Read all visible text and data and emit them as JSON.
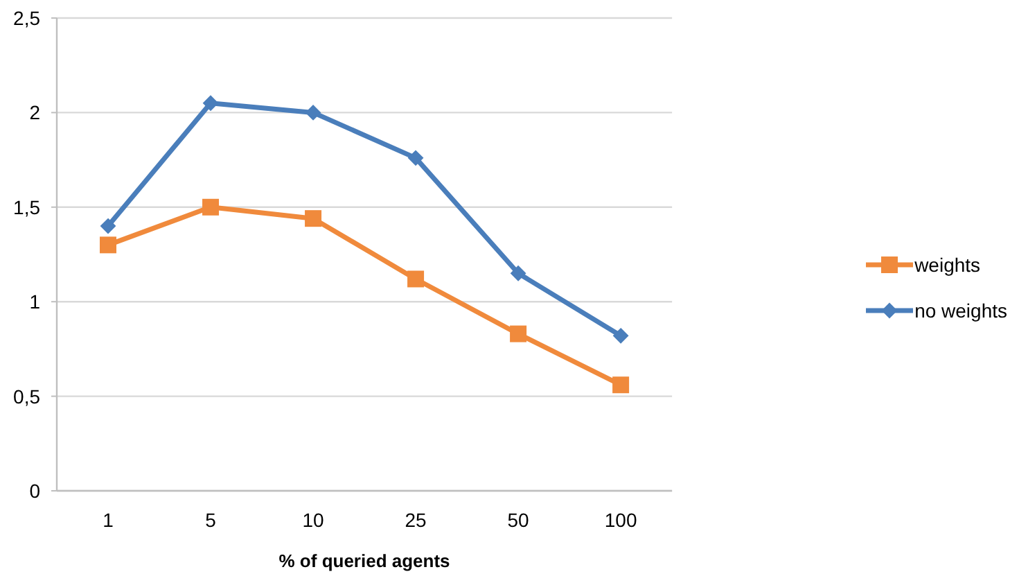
{
  "chart_data": {
    "type": "line",
    "xlabel": "% of queried agents",
    "categories": [
      "1",
      "5",
      "10",
      "25",
      "50",
      "100"
    ],
    "series": [
      {
        "name": "weights",
        "color": "#f08a3c",
        "marker": "square",
        "values": [
          1.3,
          1.5,
          1.44,
          1.12,
          0.83,
          0.56
        ]
      },
      {
        "name": "no weights",
        "color": "#4a7ebb",
        "marker": "diamond",
        "values": [
          1.4,
          2.05,
          2.0,
          1.76,
          1.15,
          0.82
        ]
      }
    ],
    "ylim": [
      0,
      2.5
    ],
    "yticks": [
      0,
      {
        "value": 0.5,
        "label": "0,5"
      },
      1,
      {
        "value": 1.5,
        "label": "1,5"
      },
      2,
      {
        "value": 2.5,
        "label": "2,5"
      }
    ],
    "grid": "y",
    "legend": "right",
    "line_style": "solid"
  }
}
